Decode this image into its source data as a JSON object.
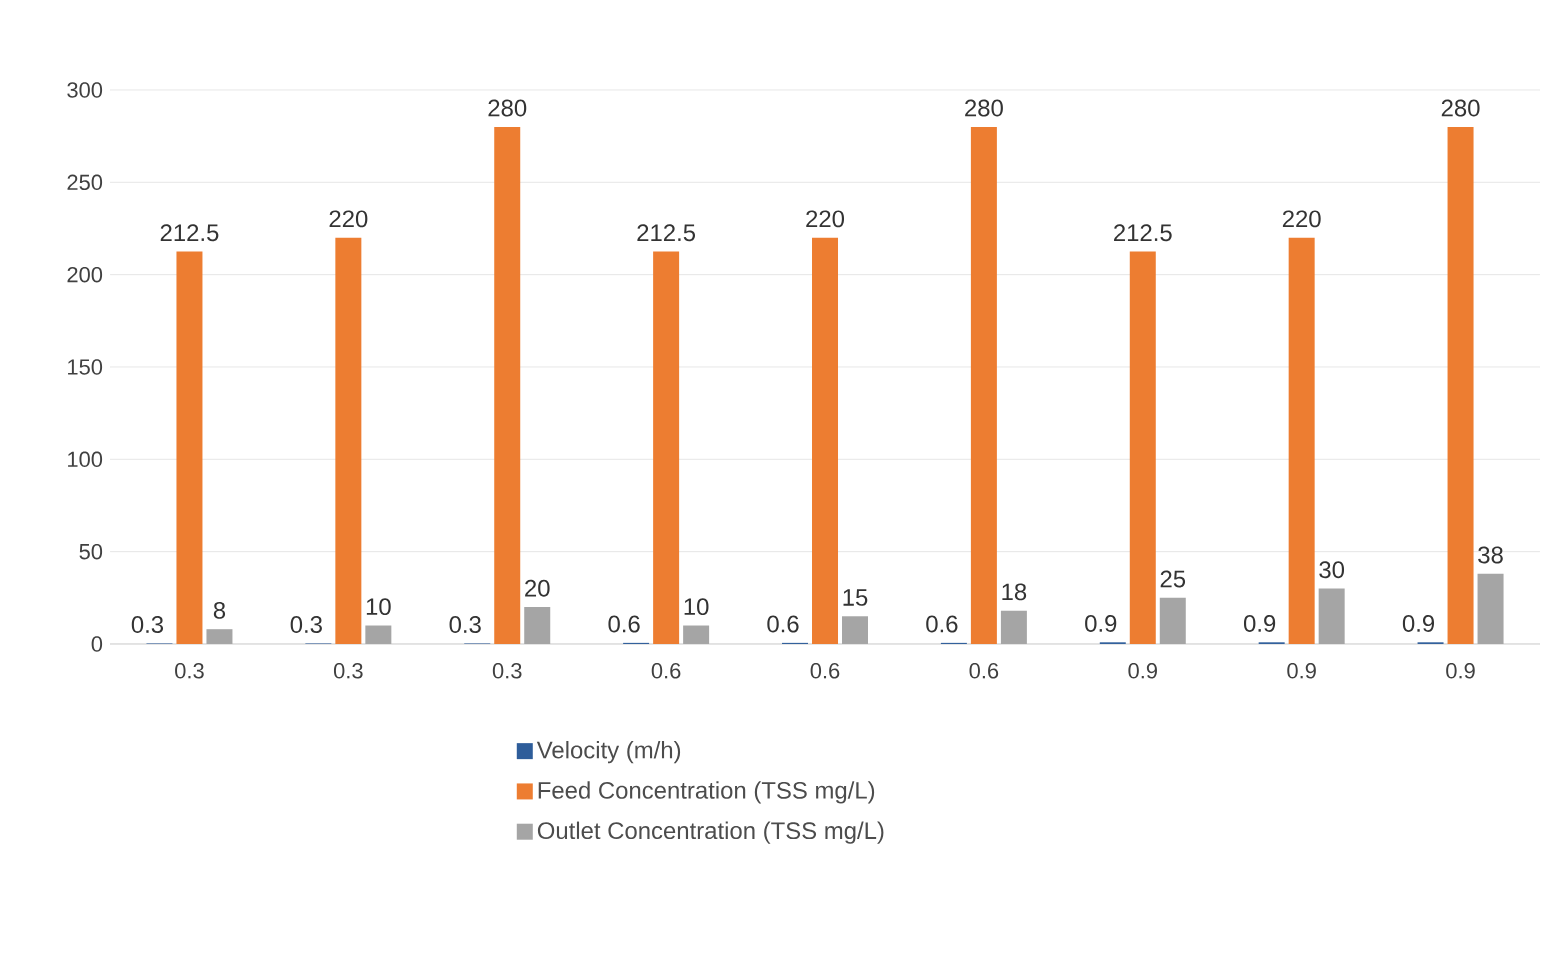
{
  "chart_data": {
    "type": "bar",
    "categories": [
      "0.3",
      "0.3",
      "0.3",
      "0.6",
      "0.6",
      "0.6",
      "0.9",
      "0.9",
      "0.9"
    ],
    "series": [
      {
        "name": "Velocity (m/h)",
        "color": "#2e5d9a",
        "values": [
          0.3,
          0.3,
          0.3,
          0.6,
          0.6,
          0.6,
          0.9,
          0.9,
          0.9
        ]
      },
      {
        "name": "Feed Concentration (TSS mg/L)",
        "color": "#ed7d31",
        "values": [
          212.5,
          220,
          280,
          212.5,
          220,
          280,
          212.5,
          220,
          280
        ]
      },
      {
        "name": "Outlet Concentration (TSS mg/L)",
        "color": "#a5a5a5",
        "values": [
          8,
          10,
          20,
          10,
          15,
          18,
          25,
          30,
          38
        ]
      }
    ],
    "ylim": [
      0,
      300
    ],
    "yticks": [
      0,
      50,
      100,
      150,
      200,
      250,
      300
    ],
    "grid": "y",
    "legend": "bottom",
    "data_labels": true
  }
}
